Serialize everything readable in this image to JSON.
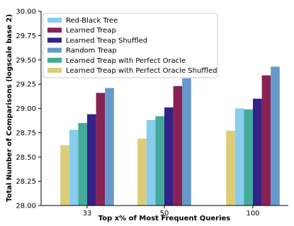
{
  "chart_data": {
    "type": "bar",
    "title": "",
    "xlabel": "Top x% of Most Frequent Queries",
    "ylabel": "Total Number of Comparisons (logscale base 2)",
    "categories": [
      "33",
      "50",
      "100"
    ],
    "ylim": [
      28.0,
      30.0
    ],
    "yticks": [
      "28.00",
      "28.25",
      "28.50",
      "28.75",
      "29.00",
      "29.25",
      "29.50",
      "29.75",
      "30.00"
    ],
    "grid": false,
    "legend_position": "top-left",
    "bar_order": [
      "Learned Treap with Perfect Oracle Shuffled",
      "Red-Black Tree",
      "Learned Treap with Perfect Oracle",
      "Learned Treap Shuffled",
      "Learned Treap",
      "Random Treap"
    ],
    "series": [
      {
        "name": "Red-Black Tree",
        "color": "#88ccee",
        "values": [
          28.78,
          28.88,
          29.0
        ]
      },
      {
        "name": "Learned Treap",
        "color": "#882255",
        "values": [
          29.16,
          29.23,
          29.34
        ]
      },
      {
        "name": "Learned Treap Shuffled",
        "color": "#332288",
        "values": [
          28.94,
          29.01,
          29.1
        ]
      },
      {
        "name": "Random Treap",
        "color": "#6699cc",
        "values": [
          29.21,
          29.31,
          29.43
        ]
      },
      {
        "name": "Learned Treap with Perfect Oracle",
        "color": "#44aa99",
        "values": [
          28.85,
          28.92,
          28.99
        ]
      },
      {
        "name": "Learned Treap with Perfect Oracle Shuffled",
        "color": "#ddcc77",
        "values": [
          28.62,
          28.69,
          28.77
        ]
      }
    ]
  }
}
